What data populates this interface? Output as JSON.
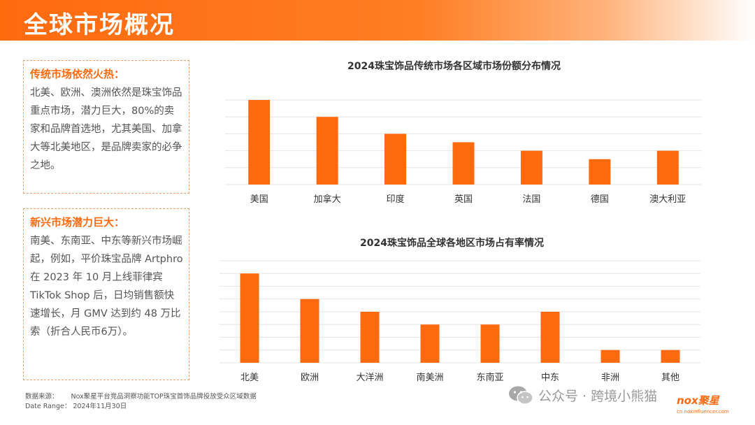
{
  "header": {
    "title": "全球市场概况"
  },
  "panel1": {
    "heading": "传统市场依然火热：",
    "body": "北美、欧洲、澳洲依然是珠宝饰品重点市场，潜力巨大，80%的卖家和品牌首选地，尤其美国、加拿大等北美地区，是品牌卖家的必争之地。"
  },
  "panel2": {
    "heading": "新兴市场潜力巨大：",
    "body": "南美、东南亚、中东等新兴市场崛起，例如，平价珠宝品牌 Artphro 在 2023 年 10 月上线菲律宾 TikTok Shop 后，日均销售额快速增长，月 GMV 达到约 48 万比索（折合人民币6万）。"
  },
  "footer": {
    "source_label": "数据来源：",
    "source_text": "Nox聚星平台竞品洞察功能TOP珠宝首饰品牌投放受众区域数据",
    "date_label": "Date  Range：",
    "date_text": "2024年11月30日"
  },
  "watermark": {
    "text": "公众号 · 跨境小熊猫"
  },
  "logo": {
    "name": "nox聚星",
    "url": "cn.noxinfluencer.com"
  },
  "colors": {
    "accent": "#ff6a0f",
    "bar": "#ff6a0f",
    "grid": "#e6e6e6"
  },
  "chart_data": [
    {
      "type": "bar",
      "title": "2024珠宝饰品传统市场各区域市场份额分布情况",
      "categories": [
        "美国",
        "加拿大",
        "印度",
        "英国",
        "法国",
        "德国",
        "澳大利亚"
      ],
      "values": [
        10,
        8,
        6,
        5,
        4,
        3,
        4
      ],
      "ylim": [
        0,
        10
      ],
      "grid": true
    },
    {
      "type": "bar",
      "title": "2024珠宝饰品全球各地区市场占有率情况",
      "categories": [
        "北美",
        "欧洲",
        "大洋洲",
        "南美洲",
        "东南亚",
        "中东",
        "非洲",
        "其他"
      ],
      "values": [
        7,
        5,
        4,
        3,
        3,
        4,
        1,
        1
      ],
      "ylim": [
        0,
        8
      ],
      "grid": true
    }
  ]
}
